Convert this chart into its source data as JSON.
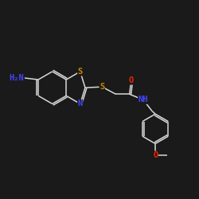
{
  "background_color": "#1a1a1a",
  "line_color": "#d8d8d8",
  "atom_colors": {
    "N": "#4444ff",
    "S": "#cc8800",
    "O": "#ff2200",
    "C": "#d8d8d8"
  },
  "font_size_atom": 7.5,
  "lw": 1.1,
  "figsize": [
    2.5,
    2.5
  ],
  "dpi": 100,
  "xlim": [
    0,
    10
  ],
  "ylim": [
    0,
    10
  ]
}
